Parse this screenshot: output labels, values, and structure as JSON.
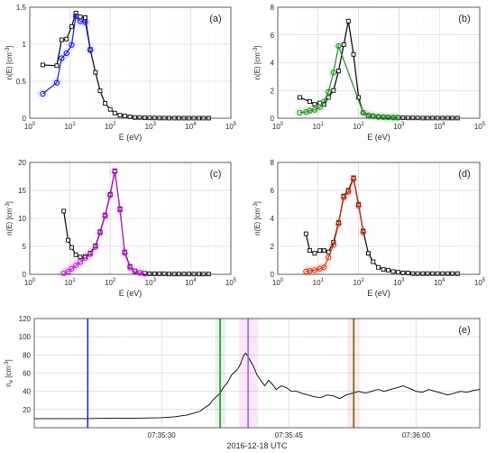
{
  "chart_data": [
    {
      "type": "line",
      "panel_label": "(a)",
      "xlabel": "E (eV)",
      "ylabel_main": "n(E) [cm",
      "ylabel_sup": "-3",
      "ylabel_close": "]",
      "xscale": "log",
      "xlim": [
        1,
        100000
      ],
      "ylim": [
        0,
        1.5
      ],
      "yticks": [
        0,
        0.5,
        1,
        1.5
      ],
      "ytick_labels": [
        "0",
        "0.5",
        "1",
        "1.5"
      ],
      "grid": true,
      "highlight_color": "#1a1adb",
      "series": [
        {
          "color": "#000000",
          "marker": "square",
          "x": [
            2.1,
            4.7,
            6.2,
            8.2,
            11,
            14,
            18,
            24,
            32,
            43,
            56,
            75,
            100,
            130,
            175,
            230,
            310,
            410,
            540,
            720,
            950,
            1260,
            1670,
            2200,
            2900,
            3900,
            5100,
            6800,
            9000,
            12000,
            16000,
            21000,
            28000
          ],
          "y": [
            0.72,
            0.71,
            1.06,
            1.07,
            1.24,
            1.42,
            1.37,
            1.36,
            0.93,
            0.62,
            0.37,
            0.2,
            0.12,
            0.07,
            0.04,
            0.03,
            0.02,
            0.01,
            0.01,
            0.005,
            0.004,
            0.003,
            0.002,
            0.002,
            0.001,
            0.001,
            0.001,
            0.001,
            0.001,
            0.001,
            0.001,
            0.001,
            0.001
          ]
        },
        {
          "color": "#1a1adb",
          "marker": "circle",
          "x": [
            2.1,
            4.7,
            6.2,
            8.2,
            11,
            14,
            18,
            24,
            32
          ],
          "y": [
            0.33,
            0.48,
            0.81,
            0.88,
            0.99,
            1.38,
            1.31,
            1.3,
            0.92
          ]
        }
      ]
    },
    {
      "type": "line",
      "panel_label": "(b)",
      "xlabel": "E (eV)",
      "ylabel_main": "n(E) [cm",
      "ylabel_sup": "-3",
      "ylabel_close": "]",
      "xscale": "log",
      "xlim": [
        1,
        100000
      ],
      "ylim": [
        0,
        8
      ],
      "yticks": [
        0,
        2,
        4,
        6,
        8
      ],
      "ytick_labels": [
        "0",
        "2",
        "4",
        "6",
        "8"
      ],
      "grid": true,
      "highlight_color": "#1f8f1f",
      "series": [
        {
          "color": "#000000",
          "marker": "square",
          "x": [
            3.5,
            6.2,
            8.2,
            11,
            14,
            18,
            24,
            32,
            43,
            56,
            75,
            100,
            130,
            175,
            230,
            310,
            410,
            540,
            720,
            950,
            1260,
            1670,
            2200,
            2900,
            3900,
            5100,
            6800,
            9000,
            12000,
            16000,
            21000,
            28000
          ],
          "y": [
            1.5,
            1.2,
            1.0,
            1.1,
            1.0,
            1.5,
            2.0,
            3.4,
            5.3,
            7.0,
            4.6,
            1.5,
            0.4,
            0.2,
            0.15,
            0.1,
            0.08,
            0.06,
            0.05,
            0.04,
            0.03,
            0.02,
            0.02,
            0.02,
            0.01,
            0.01,
            0.01,
            0.01,
            0.01,
            0.01,
            0.01,
            0.01
          ]
        },
        {
          "color": "#1f8f1f",
          "marker": "circle",
          "x": [
            3.5,
            5,
            6.2,
            8.2,
            11,
            14,
            18,
            24,
            32,
            130,
            175,
            230,
            310,
            410,
            540,
            720,
            950
          ],
          "y": [
            0.4,
            0.45,
            0.55,
            0.6,
            0.8,
            1.2,
            1.9,
            3.3,
            5.2,
            0.4,
            0.2,
            0.15,
            0.1,
            0.08,
            0.06,
            0.05,
            0.04
          ]
        }
      ]
    },
    {
      "type": "line",
      "panel_label": "(c)",
      "xlabel": "E (eV)",
      "ylabel_main": "n(E) [cm",
      "ylabel_sup": "-3",
      "ylabel_close": "]",
      "xscale": "log",
      "xlim": [
        1,
        100000
      ],
      "ylim": [
        0,
        20
      ],
      "yticks": [
        0,
        5,
        10,
        15,
        20
      ],
      "ytick_labels": [
        "0",
        "5",
        "10",
        "15",
        "20"
      ],
      "grid": true,
      "highlight_color": "#c21fd6",
      "series": [
        {
          "color": "#000000",
          "marker": "square",
          "x": [
            7,
            9,
            11,
            14,
            18,
            24,
            32,
            43,
            56,
            75,
            100,
            130,
            175,
            230,
            310,
            410,
            540,
            720,
            950,
            1260,
            1670,
            2200,
            2900,
            3900,
            5100,
            6800,
            9000,
            12000,
            16000,
            21000,
            28000
          ],
          "y": [
            11.3,
            6.1,
            4.8,
            3.5,
            3.1,
            3.2,
            3.8,
            5.1,
            7.6,
            10.6,
            14.3,
            18.5,
            11.7,
            4.0,
            1.4,
            0.6,
            0.3,
            0.2,
            0.1,
            0.1,
            0.1,
            0.1,
            0.05,
            0.05,
            0.05,
            0.05,
            0.05,
            0.05,
            0.05,
            0.05,
            0.05
          ]
        },
        {
          "color": "#c21fd6",
          "marker": "circle",
          "x": [
            7,
            9,
            11,
            14,
            18,
            24,
            32,
            43,
            56,
            75,
            100,
            130,
            175,
            230,
            310,
            410,
            540,
            720
          ],
          "y": [
            0.2,
            0.5,
            1.0,
            1.6,
            2.2,
            2.9,
            3.6,
            4.9,
            7.4,
            10.4,
            14.1,
            18.3,
            11.5,
            3.8,
            1.2,
            0.5,
            0.25,
            0.1
          ]
        }
      ]
    },
    {
      "type": "line",
      "panel_label": "(d)",
      "xlabel": "E (eV)",
      "ylabel_main": "n(E) [cm",
      "ylabel_sup": "-3",
      "ylabel_close": "]",
      "xscale": "log",
      "xlim": [
        1,
        100000
      ],
      "ylim": [
        0,
        8
      ],
      "yticks": [
        0,
        2,
        4,
        6,
        8
      ],
      "ytick_labels": [
        "0",
        "2",
        "4",
        "6",
        "8"
      ],
      "grid": true,
      "highlight_color": "#d43a1a",
      "series": [
        {
          "color": "#000000",
          "marker": "square",
          "x": [
            5,
            6.2,
            8.2,
            11,
            14,
            18,
            24,
            32,
            43,
            56,
            75,
            100,
            130,
            175,
            230,
            310,
            410,
            540,
            720,
            950,
            1260,
            1670,
            2200,
            2900,
            3900,
            5100,
            6800,
            9000,
            12000,
            16000,
            21000,
            28000
          ],
          "y": [
            2.9,
            1.7,
            1.5,
            1.7,
            1.7,
            1.6,
            2.3,
            3.7,
            5.6,
            6.0,
            6.9,
            5.0,
            3.1,
            1.5,
            0.9,
            0.5,
            0.35,
            0.3,
            0.2,
            0.15,
            0.1,
            0.1,
            0.05,
            0.05,
            0.05,
            0.05,
            0.05,
            0.05,
            0.05,
            0.05,
            0.05,
            0.05
          ]
        },
        {
          "color": "#d43a1a",
          "marker": "circle",
          "x": [
            5,
            6.2,
            8.2,
            11,
            14,
            18,
            24,
            32,
            43,
            56,
            75,
            100,
            130
          ],
          "y": [
            0.2,
            0.25,
            0.3,
            0.4,
            0.5,
            1.2,
            2.1,
            3.6,
            5.5,
            5.9,
            6.8,
            4.9,
            3.0
          ]
        }
      ]
    },
    {
      "type": "line",
      "panel_label": "(e)",
      "xlabel": "2016-12-18 UTC",
      "ylabel_main": "n",
      "ylabel_sub": "e",
      "ylabel_rest": " [cm",
      "ylabel_sup": "-3",
      "ylabel_close": "]",
      "ylim": [
        0,
        120
      ],
      "yticks": [
        20,
        40,
        60,
        80,
        100,
        120
      ],
      "ytick_labels": [
        "20",
        "40",
        "60",
        "80",
        "100",
        "120"
      ],
      "xlim": [
        0,
        35
      ],
      "xticks": [
        10,
        20,
        30
      ],
      "xtick_labels": [
        "07:35:30",
        "07:35:45",
        "07:36:00"
      ],
      "grid": true,
      "markers": [
        {
          "time": 4.2,
          "color": "#2a2ad9"
        },
        {
          "time": 14.6,
          "color": "#1f8f1f"
        },
        {
          "time": 16.8,
          "color": "#9b5cf0"
        },
        {
          "time": 25.1,
          "color": "#7a5a10"
        }
      ],
      "shaded": [
        {
          "from": 14.2,
          "to": 15.0,
          "color": "#1f8f1f"
        },
        {
          "from": 16.1,
          "to": 17.6,
          "color": "#c21fd6"
        },
        {
          "from": 24.6,
          "to": 25.6,
          "color": "#d43a1a"
        }
      ],
      "series": [
        {
          "color": "#000000",
          "x": [
            0,
            2,
            4,
            6,
            8,
            10,
            11,
            12,
            12.5,
            13,
            13.4,
            13.8,
            14,
            14.3,
            14.6,
            14.9,
            15.2,
            15.5,
            15.8,
            16.0,
            16.2,
            16.4,
            16.6,
            16.8,
            17.0,
            17.2,
            17.5,
            17.8,
            18.1,
            18.4,
            18.7,
            19.0,
            19.4,
            19.8,
            20.2,
            20.6,
            21.0,
            21.5,
            22.0,
            22.5,
            23.0,
            23.5,
            24.0,
            24.5,
            25.0,
            25.5,
            26.0,
            26.5,
            27.0,
            27.5,
            28.0,
            28.5,
            29.0,
            29.5,
            30.0,
            30.5,
            31.0,
            31.5,
            32.0,
            32.5,
            33.0,
            33.5,
            34.0,
            34.5,
            35.0
          ],
          "y": [
            10,
            10,
            10,
            10.5,
            10.5,
            11,
            12,
            14,
            16,
            18,
            22,
            26,
            30,
            34,
            38,
            45,
            50,
            58,
            62,
            65,
            70,
            78,
            82,
            78,
            73,
            68,
            58,
            52,
            46,
            52,
            48,
            42,
            46,
            44,
            40,
            40,
            38,
            36,
            34,
            33,
            36,
            35,
            32,
            36,
            38,
            40,
            38,
            40,
            42,
            40,
            42,
            44,
            46,
            43,
            40,
            39,
            42,
            40,
            38,
            36,
            38,
            40,
            39,
            41,
            42
          ]
        }
      ]
    }
  ]
}
